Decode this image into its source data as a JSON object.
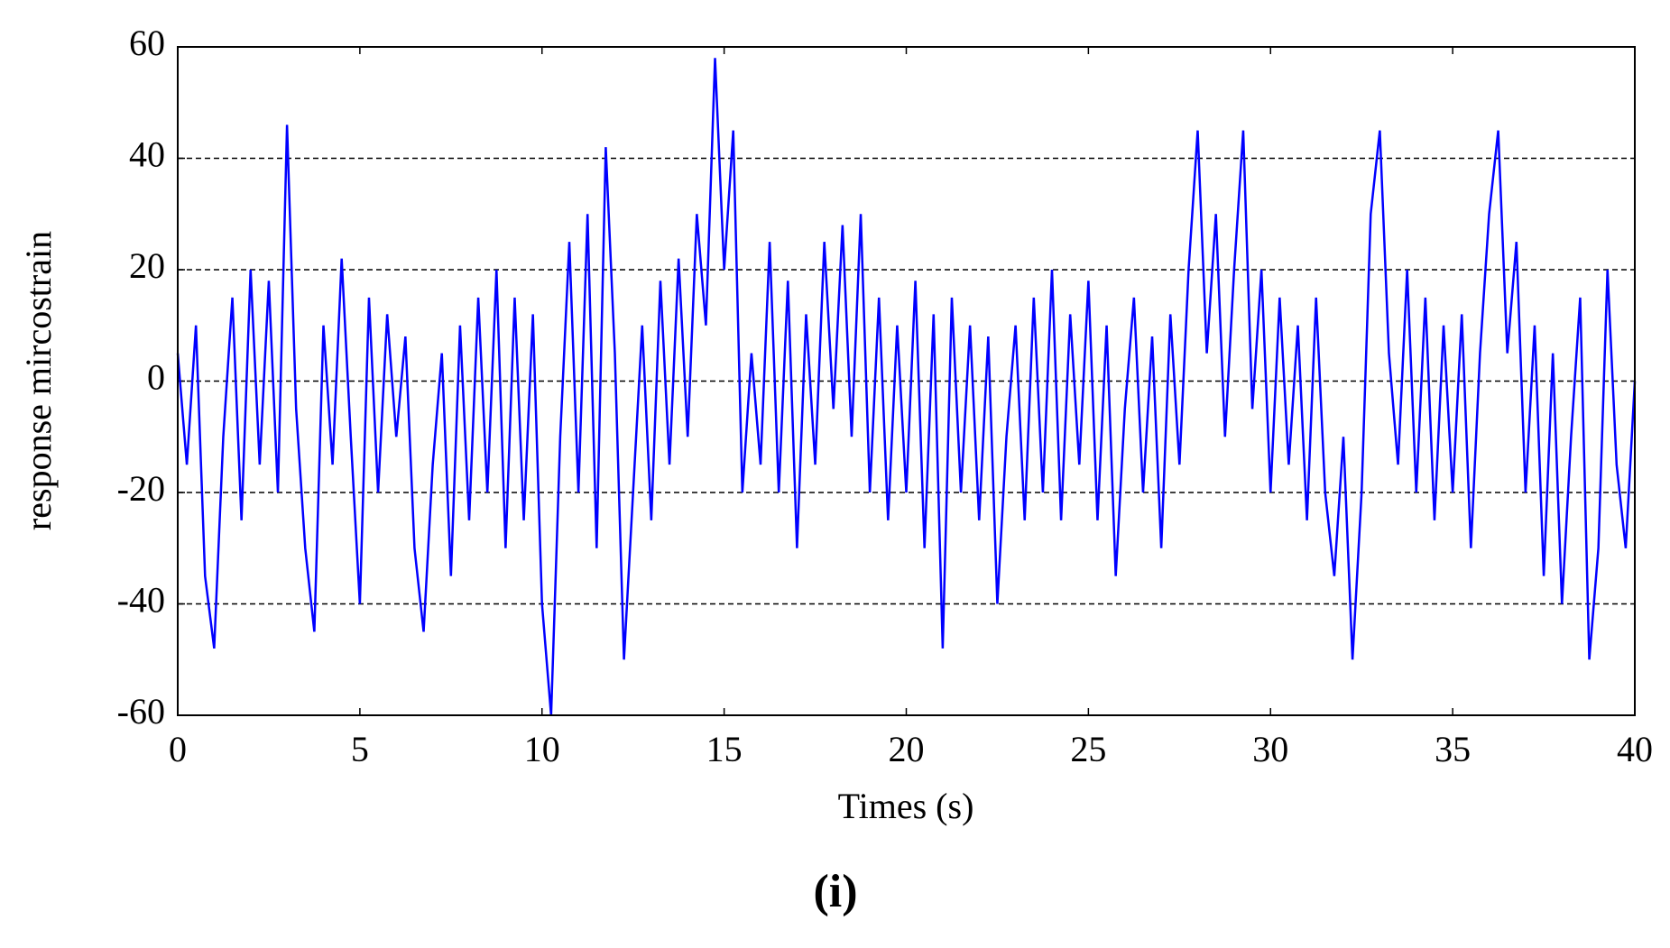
{
  "chart_data": {
    "type": "line",
    "ylabel": "response mircostrain",
    "xlabel": "Times (s)",
    "panel_label": "(i)",
    "xlim": [
      0,
      40
    ],
    "xticks": [
      0,
      5,
      10,
      15,
      20,
      25,
      30,
      35,
      40
    ],
    "ylim": [
      -60,
      60
    ],
    "yticks": [
      -60,
      -40,
      -20,
      0,
      20,
      40,
      60
    ],
    "grid": true,
    "series": [
      {
        "color": "#0000ff",
        "x": [
          0,
          0.25,
          0.5,
          0.75,
          1,
          1.25,
          1.5,
          1.75,
          2,
          2.25,
          2.5,
          2.75,
          3,
          3.25,
          3.5,
          3.75,
          4,
          4.25,
          4.5,
          4.75,
          5,
          5.25,
          5.5,
          5.75,
          6,
          6.25,
          6.5,
          6.75,
          7,
          7.25,
          7.5,
          7.75,
          8,
          8.25,
          8.5,
          8.75,
          9,
          9.25,
          9.5,
          9.75,
          10,
          10.25,
          10.5,
          10.75,
          11,
          11.25,
          11.5,
          11.75,
          12,
          12.25,
          12.5,
          12.75,
          13,
          13.25,
          13.5,
          13.75,
          14,
          14.25,
          14.5,
          14.75,
          15,
          15.25,
          15.5,
          15.75,
          16,
          16.25,
          16.5,
          16.75,
          17,
          17.25,
          17.5,
          17.75,
          18,
          18.25,
          18.5,
          18.75,
          19,
          19.25,
          19.5,
          19.75,
          20,
          20.25,
          20.5,
          20.75,
          21,
          21.25,
          21.5,
          21.75,
          22,
          22.25,
          22.5,
          22.75,
          23,
          23.25,
          23.5,
          23.75,
          24,
          24.25,
          24.5,
          24.75,
          25,
          25.25,
          25.5,
          25.75,
          26,
          26.25,
          26.5,
          26.75,
          27,
          27.25,
          27.5,
          27.75,
          28,
          28.25,
          28.5,
          28.75,
          29,
          29.25,
          29.5,
          29.75,
          30,
          30.25,
          30.5,
          30.75,
          31,
          31.25,
          31.5,
          31.75,
          32,
          32.25,
          32.5,
          32.75,
          33,
          33.25,
          33.5,
          33.75,
          34,
          34.25,
          34.5,
          34.75,
          35,
          35.25,
          35.5,
          35.75,
          36,
          36.25,
          36.5,
          36.75,
          37,
          37.25,
          37.5,
          37.75,
          38,
          38.25,
          38.5,
          38.75,
          39,
          39.25,
          39.5,
          39.75,
          40
        ],
        "values": [
          5,
          -15,
          10,
          -35,
          -48,
          -10,
          15,
          -25,
          20,
          -15,
          18,
          -20,
          46,
          -5,
          -30,
          -45,
          10,
          -15,
          22,
          -10,
          -40,
          15,
          -20,
          12,
          -10,
          8,
          -30,
          -45,
          -15,
          5,
          -35,
          10,
          -25,
          15,
          -20,
          20,
          -30,
          15,
          -25,
          12,
          -40,
          -60,
          -10,
          25,
          -20,
          30,
          -30,
          42,
          5,
          -50,
          -20,
          10,
          -25,
          18,
          -15,
          22,
          -10,
          30,
          10,
          58,
          20,
          45,
          -20,
          5,
          -15,
          25,
          -20,
          18,
          -30,
          12,
          -15,
          25,
          -5,
          28,
          -10,
          30,
          -20,
          15,
          -25,
          10,
          -20,
          18,
          -30,
          12,
          -48,
          15,
          -20,
          10,
          -25,
          8,
          -40,
          -10,
          10,
          -25,
          15,
          -20,
          20,
          -25,
          12,
          -15,
          18,
          -25,
          10,
          -35,
          -5,
          15,
          -20,
          8,
          -30,
          12,
          -15,
          20,
          45,
          5,
          30,
          -10,
          20,
          45,
          -5,
          20,
          -20,
          15,
          -15,
          10,
          -25,
          15,
          -20,
          -35,
          -10,
          -50,
          -20,
          30,
          45,
          5,
          -15,
          20,
          -20,
          15,
          -25,
          10,
          -20,
          12,
          -30,
          5,
          30,
          45,
          5,
          25,
          -20,
          10,
          -35,
          5,
          -40,
          -10,
          15,
          -50,
          -30,
          20,
          -15,
          -30,
          0
        ]
      }
    ]
  }
}
